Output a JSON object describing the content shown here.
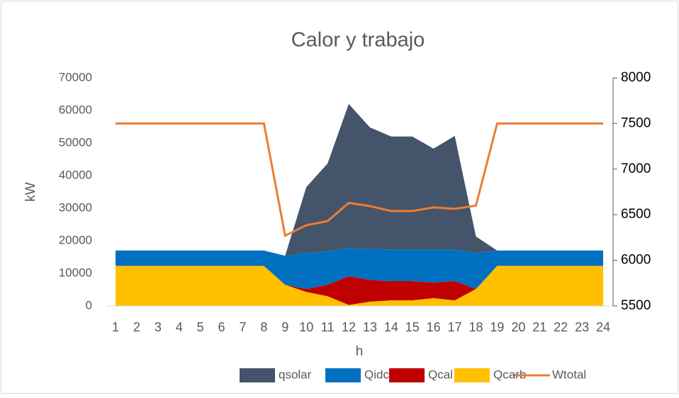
{
  "chart_data": {
    "type": "stacked_area_line",
    "title": "Calor y trabajo",
    "x_label": "h",
    "y_label": "kW",
    "categories": [
      "1",
      "2",
      "3",
      "4",
      "5",
      "6",
      "7",
      "8",
      "9",
      "10",
      "11",
      "12",
      "13",
      "14",
      "15",
      "16",
      "17",
      "18",
      "19",
      "20",
      "21",
      "22",
      "23",
      "24"
    ],
    "series": [
      {
        "name": "qsolar",
        "color": "#44546a",
        "values": [
          0,
          0,
          0,
          0,
          0,
          0,
          0,
          0,
          0,
          20200,
          27000,
          44200,
          37300,
          34700,
          34700,
          31000,
          34900,
          5000,
          0,
          0,
          0,
          0,
          0,
          0
        ]
      },
      {
        "name": "Qidc",
        "color": "#0070c0",
        "values": [
          4700,
          4700,
          4700,
          4700,
          4700,
          4700,
          4700,
          4700,
          8900,
          11100,
          10200,
          8700,
          9500,
          9700,
          9700,
          10100,
          9700,
          11100,
          4700,
          4700,
          4700,
          4700,
          4700,
          4700
        ]
      },
      {
        "name": "Qcal",
        "color": "#c00000",
        "values": [
          0,
          0,
          0,
          0,
          0,
          0,
          0,
          0,
          0,
          900,
          3500,
          8800,
          6700,
          5900,
          5900,
          4800,
          5900,
          0,
          0,
          0,
          0,
          0,
          0,
          0
        ]
      },
      {
        "name": "Qcarb",
        "color": "#ffc000",
        "values": [
          12300,
          12300,
          12300,
          12300,
          12300,
          12300,
          12300,
          12300,
          6500,
          4300,
          3000,
          300,
          1300,
          1700,
          1700,
          2400,
          1700,
          5200,
          12300,
          12300,
          12300,
          12300,
          12300,
          12300
        ]
      },
      {
        "name": "Wtotal",
        "color": "#ed7d31",
        "axis": "y2",
        "values": [
          7500,
          7500,
          7500,
          7500,
          7500,
          7500,
          7500,
          7500,
          6270,
          6385,
          6430,
          6630,
          6595,
          6540,
          6540,
          6580,
          6565,
          6600,
          7500,
          7500,
          7500,
          7500,
          7500,
          7500
        ]
      }
    ],
    "ylim": [
      0,
      70000
    ],
    "yticks": [
      0,
      10000,
      20000,
      30000,
      40000,
      50000,
      60000,
      70000
    ],
    "y2lim": [
      5500,
      8000
    ],
    "y2ticks": [
      5500,
      6000,
      6500,
      7000,
      7500,
      8000
    ]
  }
}
